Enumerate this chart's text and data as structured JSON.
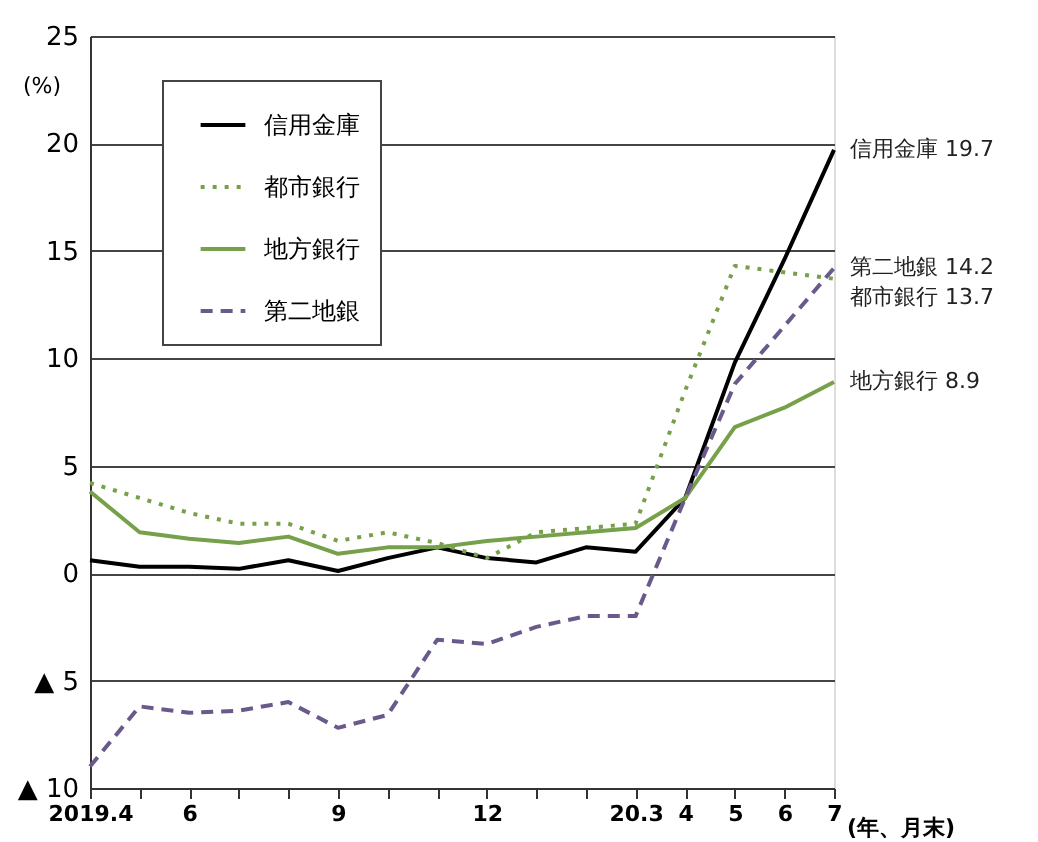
{
  "chart_data": {
    "type": "line",
    "ylabel": "(%)",
    "xlabel": "(年、月末)",
    "categories": [
      "2019.4",
      null,
      "6",
      null,
      null,
      "9",
      null,
      null,
      "12",
      null,
      null,
      "20.3",
      "4",
      "5",
      "6",
      "7"
    ],
    "series": [
      {
        "name": "信用金庫",
        "color": "#000000",
        "line_style": "solid",
        "values": [
          0.6,
          0.3,
          0.3,
          0.2,
          0.6,
          0.1,
          0.7,
          1.2,
          0.7,
          0.5,
          1.2,
          1.0,
          3.5,
          9.8,
          14.6,
          19.7
        ]
      },
      {
        "name": "都市銀行",
        "color": "#77a04a",
        "line_style": "dotted",
        "values": [
          4.2,
          3.5,
          2.8,
          2.3,
          2.3,
          1.5,
          1.9,
          1.4,
          0.7,
          1.9,
          2.1,
          2.3,
          8.5,
          14.3,
          14.0,
          13.7
        ]
      },
      {
        "name": "地方銀行",
        "color": "#77a04a",
        "line_style": "solid",
        "values": [
          3.8,
          1.9,
          1.6,
          1.4,
          1.7,
          0.9,
          1.2,
          1.2,
          1.5,
          1.7,
          1.9,
          2.1,
          3.5,
          6.8,
          7.7,
          8.9
        ]
      },
      {
        "name": "第二地銀",
        "color": "#6a5a8c",
        "line_style": "dashed",
        "values": [
          -9.0,
          -6.2,
          -6.5,
          -6.4,
          -6.0,
          -7.2,
          -6.6,
          -3.1,
          -3.3,
          -2.5,
          -2.0,
          -2.0,
          3.5,
          8.8,
          11.5,
          14.2
        ]
      }
    ],
    "annotations": [
      {
        "text": "信用金庫  19.7",
        "x": "7",
        "y": 19.7
      },
      {
        "text": "第二地銀  14.2",
        "x": "7",
        "y": 14.2
      },
      {
        "text": "都市銀行  13.7",
        "x": "7",
        "y": 13.7
      },
      {
        "text": "地方銀行  8.9",
        "x": "7",
        "y": 8.9
      }
    ],
    "ylim": [
      -10,
      25
    ],
    "yticks": [
      {
        "value": -10,
        "label": "▲ 10"
      },
      {
        "value": -5,
        "label": "▲ 5"
      },
      0,
      5,
      10,
      15,
      20,
      25
    ],
    "grid": "y",
    "legend": "top left"
  }
}
